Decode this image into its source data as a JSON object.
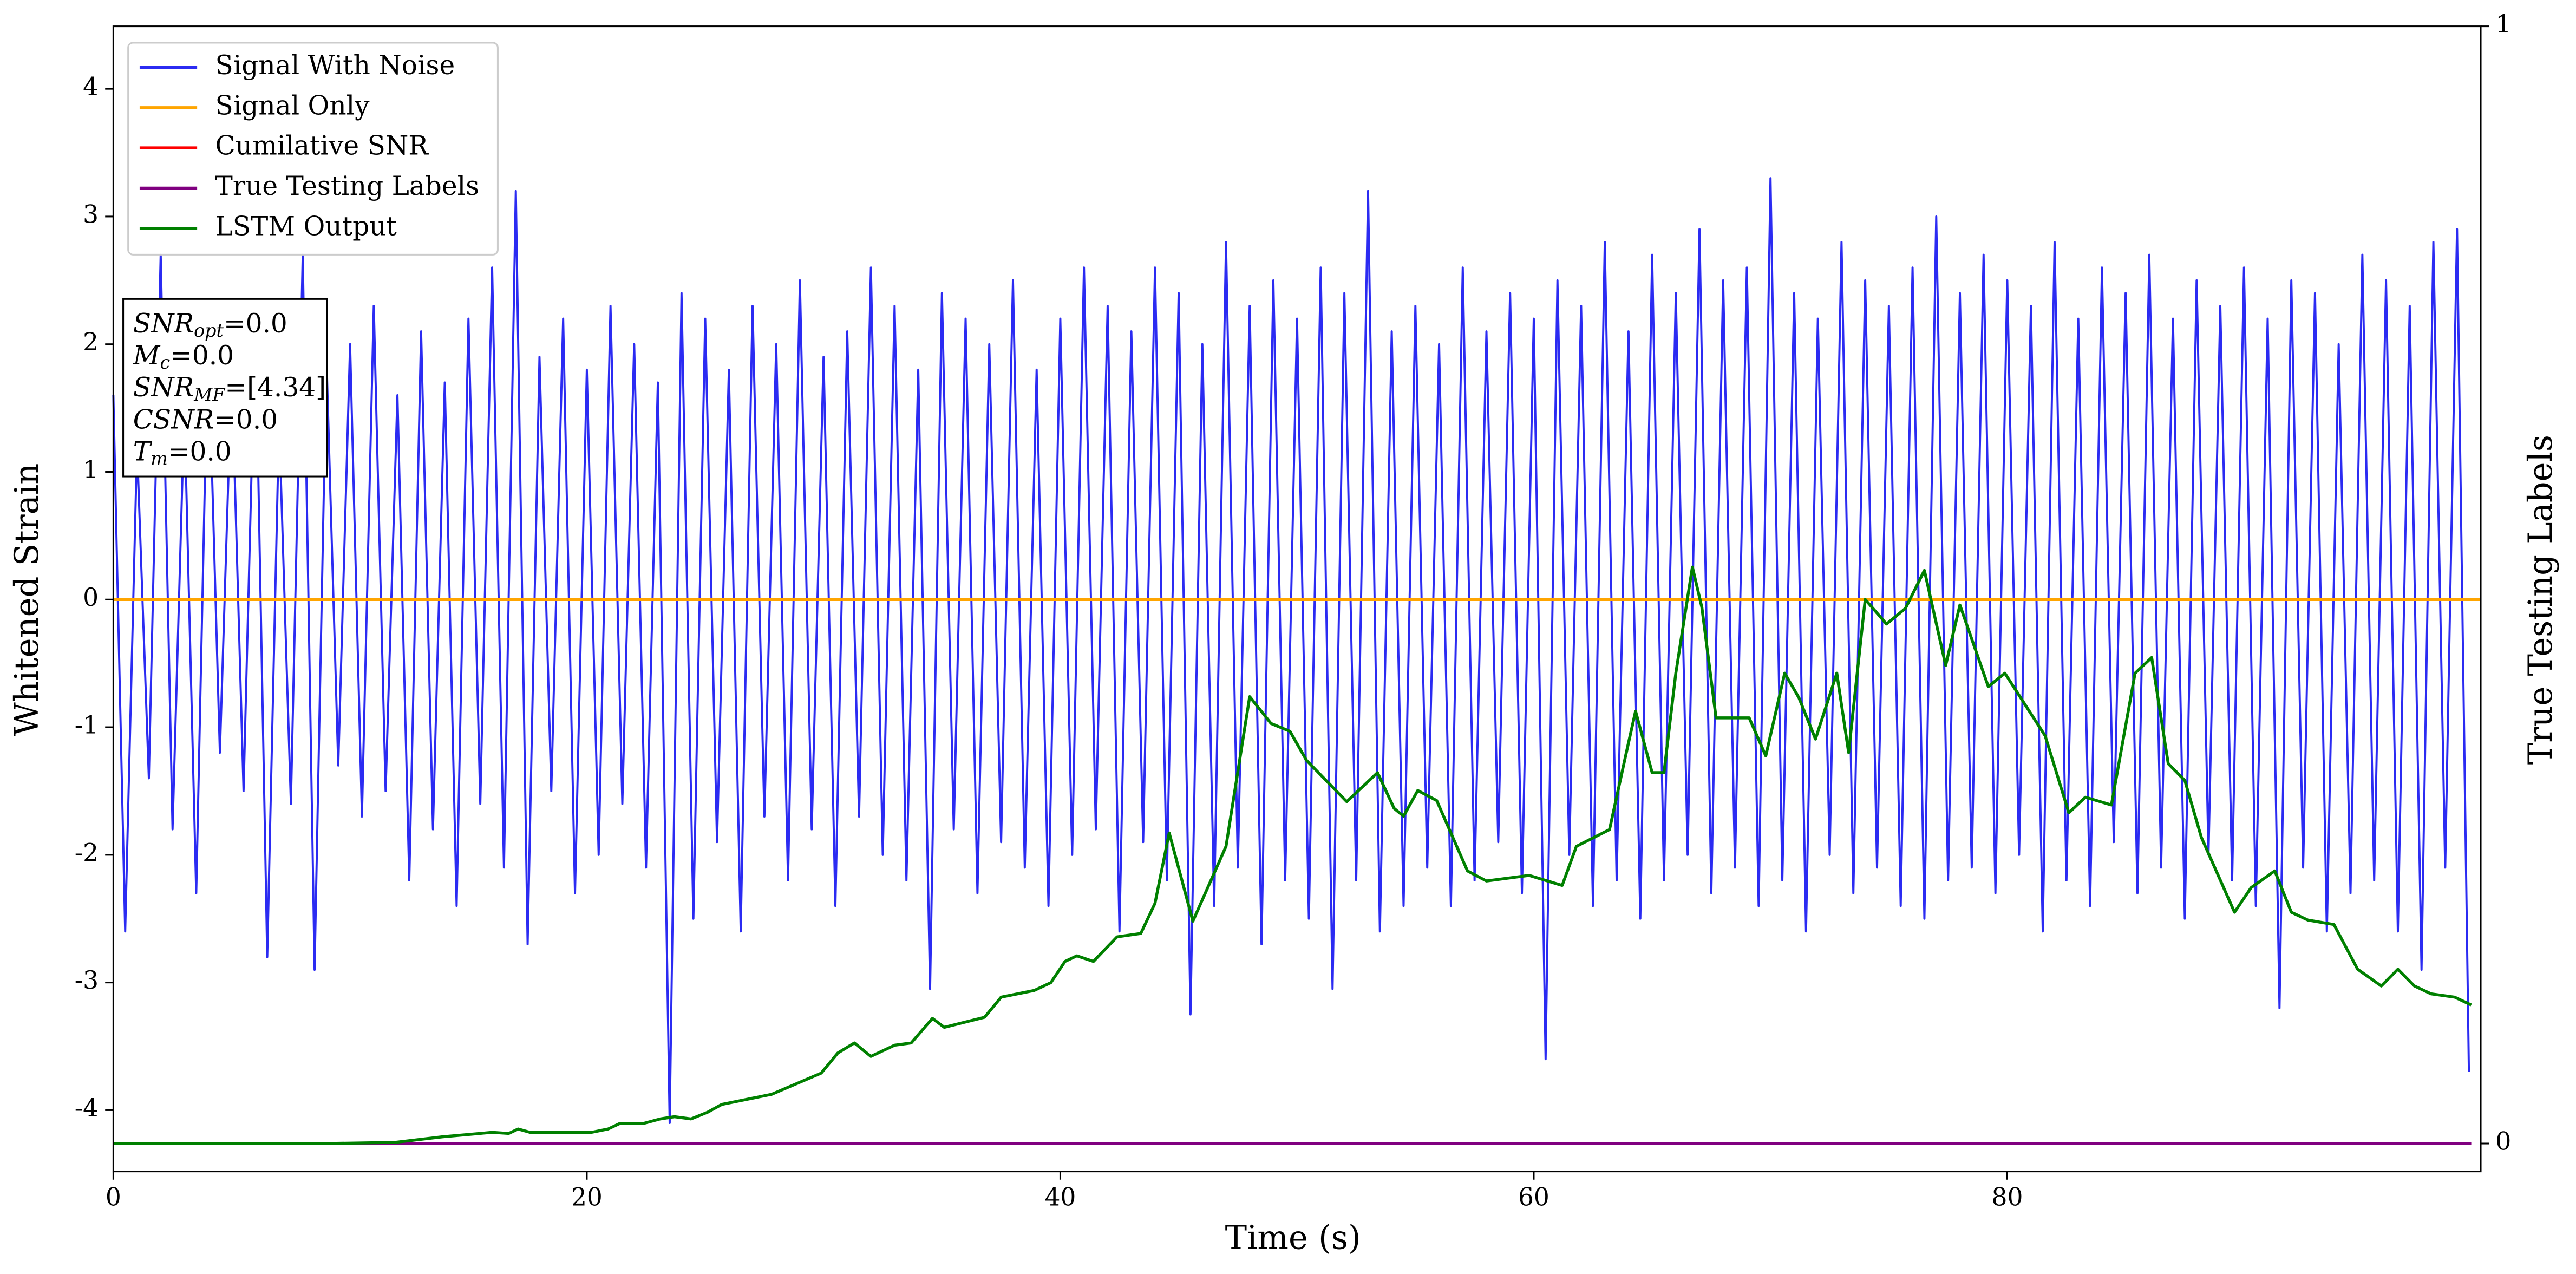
{
  "chart_data": {
    "type": "line",
    "xlabel": "Time (s)",
    "ylabel": "Whitened Strain",
    "y2label": "True Testing Labels",
    "xlim": [
      0,
      100
    ],
    "xticks": [
      0,
      20,
      40,
      60,
      80
    ],
    "ylim": [
      -4.48,
      4.49
    ],
    "yticks": [
      -4,
      -3,
      -2,
      -1,
      0,
      1,
      2,
      3,
      4
    ],
    "y2lim": [
      -0.025,
      1
    ],
    "y2ticks": [
      0,
      1
    ],
    "legend": "upper left",
    "annotation": [
      {
        "main": "SNR",
        "sub": "opt",
        "rest": "=0.0"
      },
      {
        "main": "M",
        "sub": "c",
        "rest": "=0.0"
      },
      {
        "main": "SNR",
        "sub": "MF",
        "rest": "=[4.34]"
      },
      {
        "main": "CSNR",
        "rest": "=0.0"
      },
      {
        "main": "T",
        "sub": "m",
        "rest": "=0.0"
      }
    ],
    "series": [
      {
        "name": "Signal With Noise",
        "color": "#2b2bf2",
        "axis": "y",
        "x": [
          0,
          0.5,
          1,
          1.5,
          2,
          2.5,
          3,
          3.5,
          4,
          4.5,
          5,
          5.5,
          6,
          6.5,
          7,
          7.5,
          8,
          8.5,
          9,
          9.5,
          10,
          10.5,
          11,
          11.5,
          12,
          12.5,
          13,
          13.5,
          14,
          14.5,
          15,
          15.5,
          16,
          16.5,
          17,
          17.5,
          18,
          18.5,
          19,
          19.5,
          20,
          20.5,
          21,
          21.5,
          22,
          22.5,
          23,
          23.5,
          24,
          24.5,
          25,
          25.5,
          26,
          26.5,
          27,
          27.5,
          28,
          28.5,
          29,
          29.5,
          30,
          30.5,
          31,
          31.5,
          32,
          32.5,
          33,
          33.5,
          34,
          34.5,
          35,
          35.5,
          36,
          36.5,
          37,
          37.5,
          38,
          38.5,
          39,
          39.5,
          40,
          40.5,
          41,
          41.5,
          42,
          42.5,
          43,
          43.5,
          44,
          44.5,
          45,
          45.5,
          46,
          46.5,
          47,
          47.5,
          48,
          48.5,
          49,
          49.5,
          50,
          50.5,
          51,
          51.5,
          52,
          52.5,
          53,
          53.5,
          54,
          54.5,
          55,
          55.5,
          56,
          56.5,
          57,
          57.5,
          58,
          58.5,
          59,
          59.5,
          60,
          60.5,
          61,
          61.5,
          62,
          62.5,
          63,
          63.5,
          64,
          64.5,
          65,
          65.5,
          66,
          66.5,
          67,
          67.5,
          68,
          68.5,
          69,
          69.5,
          70,
          70.5,
          71,
          71.5,
          72,
          72.5,
          73,
          73.5,
          74,
          74.5,
          75,
          75.5,
          76,
          76.5,
          77,
          77.5,
          78,
          78.5,
          79,
          79.5,
          80,
          80.5,
          81,
          81.5,
          82,
          82.5,
          83,
          83.5,
          84,
          84.5,
          85,
          85.5,
          86,
          86.5,
          87,
          87.5,
          88,
          88.5,
          89,
          89.5,
          90,
          90.5,
          91,
          91.5,
          92,
          92.5,
          93,
          93.5,
          94,
          94.5,
          95,
          95.5,
          96,
          96.5,
          97,
          97.5,
          98,
          98.5,
          99,
          99.5
        ],
        "values": [
          1.6,
          -2.6,
          1.2,
          -1.4,
          2.7,
          -1.8,
          1.5,
          -2.3,
          2.1,
          -1.2,
          1.8,
          -1.5,
          2.2,
          -2.8,
          1.4,
          -1.6,
          2.7,
          -2.9,
          1.9,
          -1.3,
          2.0,
          -1.7,
          2.3,
          -1.5,
          1.6,
          -2.2,
          2.1,
          -1.8,
          1.7,
          -2.4,
          2.2,
          -1.6,
          2.6,
          -2.1,
          3.2,
          -2.7,
          1.9,
          -1.5,
          2.2,
          -2.3,
          1.8,
          -2.0,
          2.3,
          -1.6,
          2.0,
          -2.1,
          1.7,
          -4.1,
          2.4,
          -2.5,
          2.2,
          -1.9,
          1.8,
          -2.6,
          2.3,
          -1.7,
          2.0,
          -2.2,
          2.5,
          -1.8,
          1.9,
          -2.4,
          2.1,
          -1.7,
          2.6,
          -2.0,
          2.3,
          -2.2,
          1.8,
          -3.05,
          2.4,
          -1.8,
          2.2,
          -2.3,
          2.0,
          -1.9,
          2.5,
          -2.1,
          1.8,
          -2.4,
          2.2,
          -2.0,
          2.6,
          -1.8,
          2.3,
          -2.6,
          2.1,
          -1.9,
          2.6,
          -2.2,
          2.4,
          -3.25,
          2.0,
          -2.4,
          2.8,
          -2.1,
          2.3,
          -2.7,
          2.5,
          -2.2,
          2.2,
          -2.5,
          2.6,
          -3.05,
          2.4,
          -2.2,
          3.2,
          -2.6,
          2.1,
          -2.4,
          2.3,
          -2.1,
          2.0,
          -2.4,
          2.6,
          -2.2,
          2.1,
          -1.9,
          2.4,
          -2.3,
          2.2,
          -3.6,
          2.5,
          -2.0,
          2.3,
          -2.4,
          2.8,
          -2.2,
          2.1,
          -2.5,
          2.7,
          -2.2,
          2.4,
          -2.0,
          2.9,
          -2.3,
          2.5,
          -2.1,
          2.6,
          -2.4,
          3.3,
          -2.2,
          2.4,
          -2.6,
          2.2,
          -2.0,
          2.8,
          -2.3,
          2.5,
          -2.1,
          2.3,
          -2.4,
          2.6,
          -2.5,
          3.0,
          -2.2,
          2.4,
          -2.1,
          2.7,
          -2.3,
          2.5,
          -2.0,
          2.3,
          -2.6,
          2.8,
          -2.2,
          2.2,
          -2.4,
          2.6,
          -1.9,
          2.4,
          -2.3,
          2.7,
          -2.1,
          2.2,
          -2.5,
          2.5,
          -2.0,
          2.3,
          -2.2,
          2.6,
          -2.4,
          2.2,
          -3.2,
          2.5,
          -2.1,
          2.4,
          -2.6,
          2.0,
          -2.3,
          2.7,
          -2.2,
          2.5,
          -2.6,
          2.3,
          -2.9,
          2.8,
          -2.1,
          2.9,
          -3.7
        ]
      },
      {
        "name": "Signal Only",
        "color": "orange",
        "axis": "y",
        "x": [
          0,
          100
        ],
        "values": [
          0,
          0
        ]
      },
      {
        "name": "Cumilative SNR",
        "color": "red",
        "axis": "y2",
        "x": [
          0,
          99.6
        ],
        "values": [
          0,
          0
        ]
      },
      {
        "name": "True Testing Labels",
        "color": "purple",
        "axis": "y2",
        "x": [
          0,
          99.6
        ],
        "values": [
          0,
          0
        ]
      },
      {
        "name": "LSTM Output",
        "color": "green",
        "axis": "y2",
        "x": [
          0,
          9.1,
          11.9,
          13.9,
          16,
          16.7,
          17.1,
          17.6,
          19.5,
          20.2,
          20.9,
          21.4,
          22.4,
          23.1,
          23.7,
          24.4,
          25.1,
          25.7,
          27.8,
          29.9,
          30.6,
          31.3,
          32,
          33,
          33.7,
          34.6,
          35.1,
          36.8,
          37.5,
          38.9,
          39.6,
          40.2,
          40.7,
          41.4,
          42.4,
          43.4,
          44,
          44.6,
          45.6,
          47,
          48,
          48.9,
          49.7,
          50.4,
          52.1,
          53.4,
          54.1,
          54.5,
          55.1,
          55.9,
          57.2,
          58,
          59.8,
          61.2,
          61.8,
          63.2,
          63.9,
          64.3,
          65,
          65.5,
          66,
          66.7,
          67.1,
          67.7,
          69.1,
          69.8,
          70.6,
          71.2,
          71.9,
          72.8,
          73.3,
          74,
          74.9,
          75.7,
          76.5,
          77.4,
          78,
          79.2,
          79.9,
          80.9,
          81.6,
          82.6,
          83.3,
          84.4,
          85.4,
          86.1,
          86.8,
          87.5,
          88.2,
          89.6,
          90.3,
          91.3,
          92,
          92.7,
          93.8,
          94.8,
          95.8,
          96.5,
          97.2,
          97.9,
          98.9,
          99.6
        ],
        "values": [
          0,
          0,
          0.001,
          0.006,
          0.01,
          0.009,
          0.013,
          0.01,
          0.01,
          0.01,
          0.013,
          0.018,
          0.018,
          0.022,
          0.024,
          0.022,
          0.028,
          0.035,
          0.044,
          0.063,
          0.081,
          0.09,
          0.078,
          0.088,
          0.09,
          0.112,
          0.104,
          0.113,
          0.131,
          0.137,
          0.144,
          0.163,
          0.168,
          0.163,
          0.185,
          0.188,
          0.215,
          0.278,
          0.199,
          0.266,
          0.4,
          0.376,
          0.369,
          0.343,
          0.306,
          0.332,
          0.3,
          0.293,
          0.316,
          0.307,
          0.244,
          0.235,
          0.24,
          0.231,
          0.266,
          0.281,
          0.349,
          0.387,
          0.332,
          0.332,
          0.421,
          0.516,
          0.48,
          0.381,
          0.381,
          0.347,
          0.421,
          0.399,
          0.362,
          0.421,
          0.35,
          0.487,
          0.465,
          0.479,
          0.513,
          0.428,
          0.482,
          0.409,
          0.421,
          0.388,
          0.365,
          0.296,
          0.31,
          0.303,
          0.421,
          0.435,
          0.34,
          0.325,
          0.274,
          0.207,
          0.229,
          0.244,
          0.207,
          0.2,
          0.196,
          0.156,
          0.141,
          0.156,
          0.141,
          0.134,
          0.131,
          0.124
        ]
      }
    ]
  }
}
